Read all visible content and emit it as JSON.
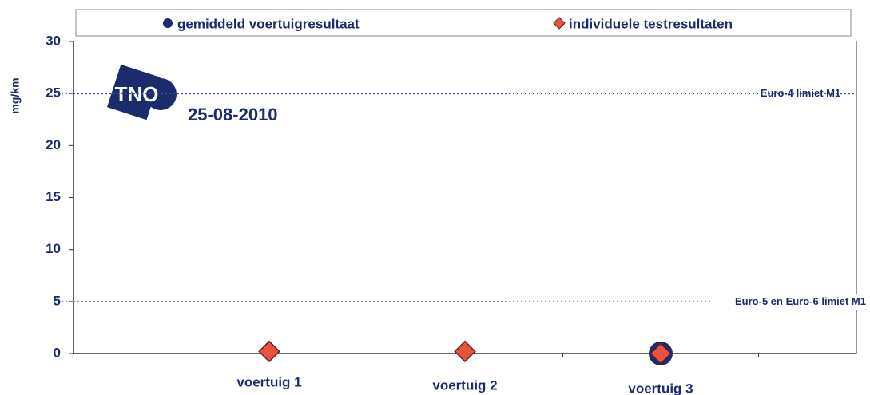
{
  "chart_data": {
    "type": "scatter",
    "y_label": "mg/km",
    "categories": [
      "voertuig 1",
      "voertuig 2",
      "voertuig 3"
    ],
    "series": [
      {
        "name": "gemiddeld voertuigresultaat",
        "color": "#1c2b6e",
        "marker": "circle",
        "values": [
          null,
          null,
          0
        ]
      },
      {
        "name": "individuele testresultaten",
        "color": "#e8533f",
        "marker": "diamond",
        "values": [
          0.2,
          0.2,
          0
        ]
      }
    ],
    "reference_lines": [
      {
        "value": 25,
        "label": "Euro-4 limiet M1",
        "color": "#3a4f9a"
      },
      {
        "value": 5,
        "label": "Euro-5 en Euro-6 limiet M1",
        "color": "#b08090"
      }
    ],
    "annotation": "25-08-2010",
    "logo": "TNO",
    "ylim": [
      0,
      30
    ],
    "yticks": [
      0,
      5,
      10,
      15,
      20,
      25,
      30
    ]
  }
}
